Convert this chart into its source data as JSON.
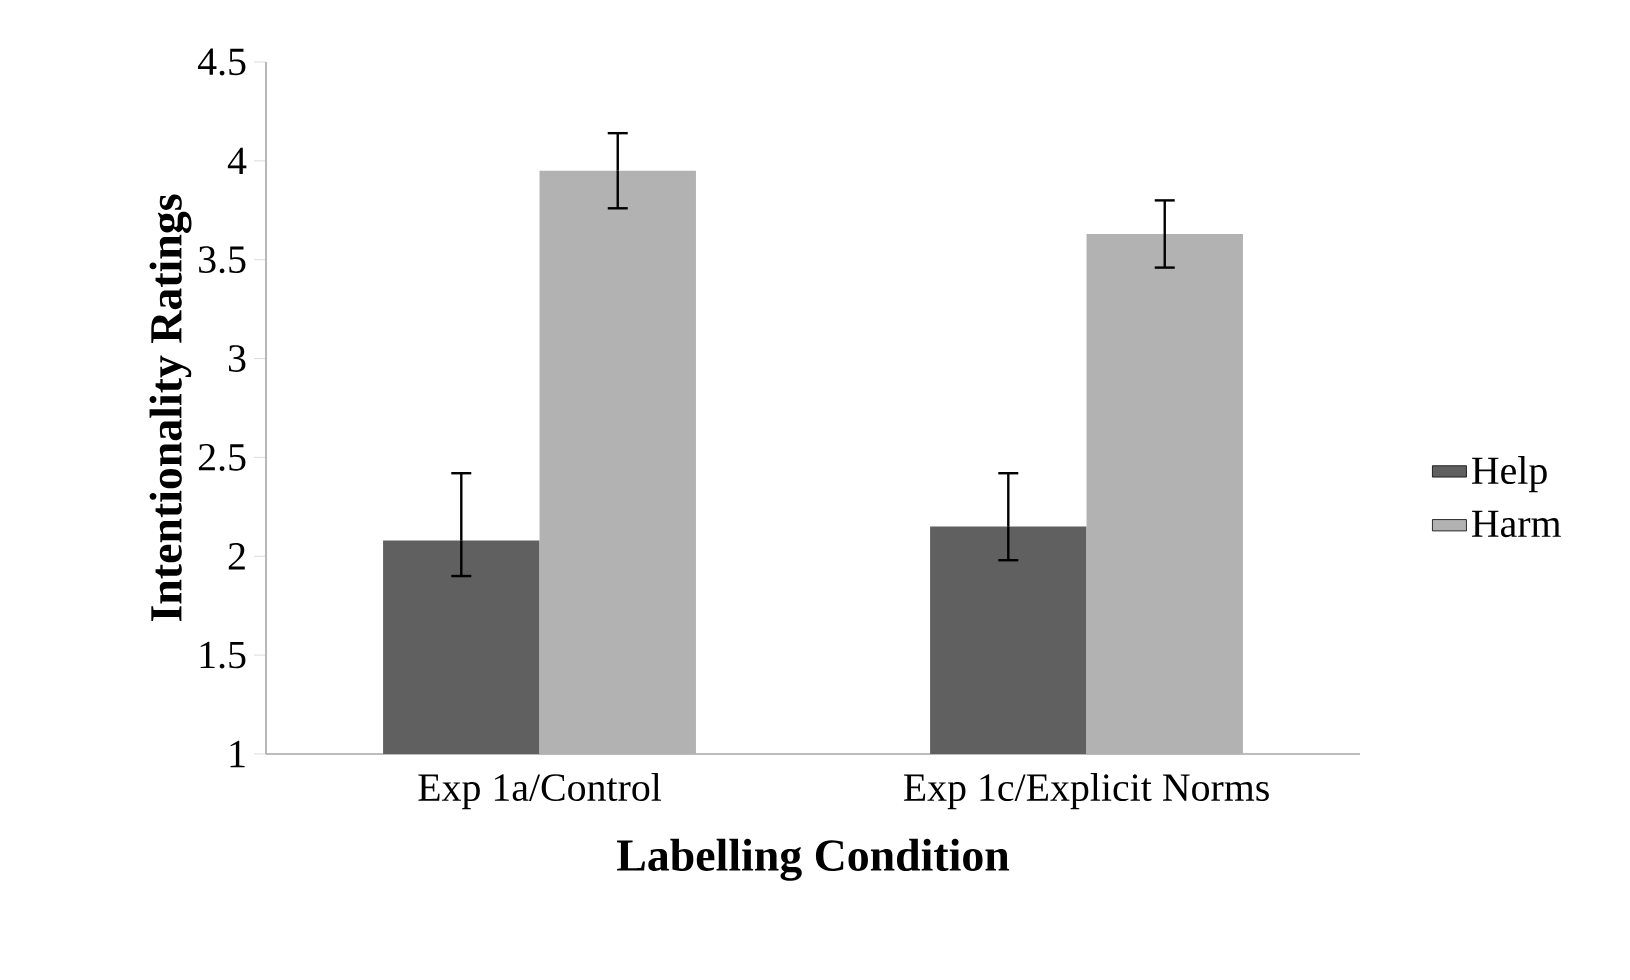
{
  "chart_data": {
    "type": "bar",
    "xlabel": "Labelling Condition",
    "ylabel": "Intentionality Ratings",
    "categories": [
      "Exp 1a/Control",
      "Exp 1c/Explicit Norms"
    ],
    "series": [
      {
        "name": "Help",
        "color": "#606060",
        "values": [
          2.08,
          2.15
        ],
        "errors": [
          [
            1.9,
            2.42
          ],
          [
            1.98,
            2.42
          ]
        ]
      },
      {
        "name": "Harm",
        "color": "#b2b2b2",
        "values": [
          3.95,
          3.63
        ],
        "errors": [
          [
            3.76,
            4.14
          ],
          [
            3.46,
            3.8
          ]
        ]
      }
    ],
    "ylim": [
      1,
      4.5
    ],
    "yticks": [
      1,
      1.5,
      2,
      2.5,
      3,
      3.5,
      4,
      4.5
    ],
    "legend": "right"
  }
}
